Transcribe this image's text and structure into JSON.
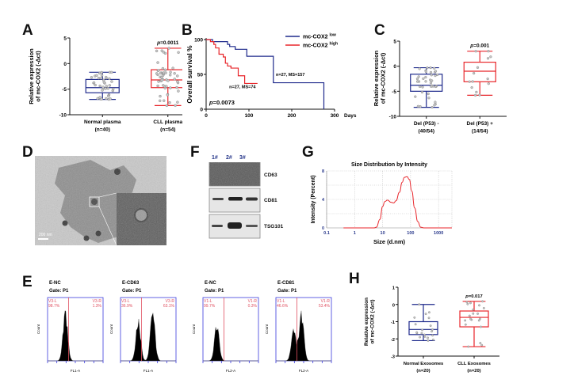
{
  "panels": {
    "A": {
      "letter": "A"
    },
    "B": {
      "letter": "B"
    },
    "C": {
      "letter": "C"
    },
    "D": {
      "letter": "D",
      "scale_bar": "200 nm"
    },
    "E": {
      "letter": "E"
    },
    "F": {
      "letter": "F"
    },
    "G": {
      "letter": "G"
    },
    "H": {
      "letter": "H"
    }
  },
  "colors": {
    "blue": "#1f2a8c",
    "red": "#e8262b",
    "point": "#888888",
    "flow_axis": "#3b3bdc",
    "flow_gate": "#e05060"
  },
  "chart_data": [
    {
      "id": "A",
      "type": "box",
      "ylabel": "Relative expression of mc-COX2 (-Δct)",
      "ylim": [
        -10,
        5
      ],
      "yticks": [
        5,
        0,
        -5,
        -10
      ],
      "categories": [
        "Normal plasma\n(n=40)",
        "CLL plasma\n(n=54)"
      ],
      "category_lines": [
        [
          "Normal plasma",
          "(n=40)"
        ],
        [
          "CLL plasma",
          "(n=54)"
        ]
      ],
      "annotation": "p=0.0011",
      "boxes": [
        {
          "name": "Normal plasma",
          "n": 40,
          "min": -7.0,
          "q1": -5.7,
          "median": -4.7,
          "q3": -3.1,
          "max": -1.7,
          "color": "blue"
        },
        {
          "name": "CLL plasma",
          "n": 54,
          "min": -8.2,
          "q1": -4.7,
          "median": -3.2,
          "q3": -1.2,
          "max": 3.0,
          "color": "red"
        }
      ]
    },
    {
      "id": "B",
      "type": "line",
      "subtype": "kaplan-meier",
      "ylabel": "Overall survival %",
      "xlabel": "Days",
      "xlim": [
        0,
        300
      ],
      "ylim": [
        0,
        100
      ],
      "xticks": [
        0,
        100,
        200,
        300
      ],
      "yticks": [
        0,
        50,
        100
      ],
      "annotation": "p=0.0073",
      "legend": "top-right",
      "series": [
        {
          "name": "mc-COX2",
          "sup": "low",
          "color": "blue",
          "label": "n=27, MS=157",
          "x": [
            0,
            15,
            15,
            50,
            50,
            55,
            55,
            68,
            68,
            95,
            95,
            157,
            157,
            275,
            275
          ],
          "y": [
            100,
            100,
            97,
            97,
            93,
            93,
            90,
            90,
            86,
            86,
            76,
            76,
            38,
            38,
            0
          ]
        },
        {
          "name": "mc-COX2",
          "sup": "high",
          "color": "red",
          "label": "n=27, MS=74",
          "x": [
            0,
            10,
            10,
            18,
            18,
            22,
            22,
            30,
            30,
            40,
            40,
            45,
            45,
            50,
            50,
            58,
            58,
            75,
            75,
            90,
            90,
            120
          ],
          "y": [
            100,
            100,
            97,
            97,
            93,
            93,
            88,
            88,
            79,
            79,
            75,
            75,
            66,
            66,
            62,
            62,
            59,
            59,
            48,
            48,
            37,
            37
          ]
        }
      ]
    },
    {
      "id": "C",
      "type": "box",
      "ylabel": "Relative expression of mc-COX2 (-Δct)",
      "ylim": [
        -10,
        5
      ],
      "yticks": [
        5,
        0,
        -5,
        -10
      ],
      "category_lines": [
        [
          "Del (P53) -",
          "(40/54)"
        ],
        [
          "Del (P53) +",
          "(14/54)"
        ]
      ],
      "annotation": "p=0.001",
      "boxes": [
        {
          "name": "Del (P53) -",
          "n": 40,
          "min": -8.2,
          "q1": -5.0,
          "median": -3.8,
          "q3": -1.6,
          "max": -0.3,
          "color": "blue"
        },
        {
          "name": "Del (P53) +",
          "n": 14,
          "min": -5.8,
          "q1": -3.1,
          "median": -1.0,
          "q3": 0.8,
          "max": 3.0,
          "color": "red"
        }
      ]
    },
    {
      "id": "G",
      "type": "line",
      "title": "Size Distribution by Intensity",
      "xlabel": "Size (d.nm)",
      "ylabel": "Intensity (Percent)",
      "xscale": "log",
      "xlim": [
        0.1,
        3000
      ],
      "ylim": [
        0,
        8
      ],
      "xticks": [
        "0.1",
        "1",
        "10",
        "100",
        "1000"
      ],
      "yticks": [
        "0",
        "4",
        "8"
      ],
      "grid": true,
      "series": [
        {
          "name": "Intensity",
          "color": "red",
          "x": [
            0.4,
            5,
            6,
            8,
            10,
            12,
            15,
            20,
            25,
            30,
            40,
            50,
            60,
            75,
            90,
            110,
            140,
            180,
            230,
            300,
            3000
          ],
          "y": [
            0,
            0,
            0.1,
            1.2,
            3.0,
            3.7,
            3.9,
            3.6,
            3.5,
            3.8,
            5.0,
            6.4,
            7.1,
            7.2,
            6.8,
            5.2,
            2.8,
            0.9,
            0.1,
            0,
            0
          ]
        }
      ]
    },
    {
      "id": "H",
      "type": "box",
      "ylabel": "Relative expression of mc-COX2 (-Δct)",
      "ylim": [
        -3,
        1
      ],
      "yticks": [
        1,
        0,
        -1,
        -2,
        -3
      ],
      "category_lines": [
        [
          "Normal Exosomes",
          "(n=20)"
        ],
        [
          "CLL Exosomes",
          "(n=20)"
        ]
      ],
      "annotation": "p=0.017",
      "boxes": [
        {
          "name": "Normal Exosomes",
          "n": 20,
          "min": -2.1,
          "q1": -1.75,
          "median": -1.45,
          "q3": -1.0,
          "max": 0.0,
          "color": "blue"
        },
        {
          "name": "CLL Exosomes",
          "n": 20,
          "min": -2.45,
          "q1": -1.3,
          "median": -0.75,
          "q3": -0.38,
          "max": 0.18,
          "color": "red"
        }
      ]
    }
  ],
  "western": {
    "lanes": [
      "1#",
      "2#",
      "3#"
    ],
    "rows": [
      {
        "label": "CD63"
      },
      {
        "label": "CD81"
      },
      {
        "label": "TSG101"
      }
    ]
  },
  "flow": [
    {
      "title": "E-NC",
      "gate": "Gate: P1",
      "left_label": "V3-L",
      "left_pct": "98.7%",
      "right_label": "V3-R",
      "right_pct": "1.3%",
      "xlabel": "FL1-A",
      "ylabel": "Count",
      "peaks": [
        [
          0.32,
          0.7
        ]
      ]
    },
    {
      "title": "E-CD63",
      "gate": "Gate: P1",
      "left_label": "V3-L",
      "left_pct": "36.9%",
      "right_label": "V3-R",
      "right_pct": "63.1%",
      "xlabel": "FL1-A",
      "ylabel": "Count",
      "peaks": [
        [
          0.32,
          0.6
        ],
        [
          0.58,
          0.72
        ]
      ]
    },
    {
      "title": "E-NC",
      "gate": "Gate: P1",
      "left_label": "V1-L",
      "left_pct": "99.7%",
      "right_label": "V1-R",
      "right_pct": "0.3%",
      "xlabel": "FL2-A",
      "ylabel": "Count",
      "peaks": [
        [
          0.25,
          0.55
        ]
      ]
    },
    {
      "title": "E-CD81",
      "gate": "Gate: P1",
      "left_label": "V1-L",
      "left_pct": "46.6%",
      "right_label": "V1-R",
      "right_pct": "53.4%",
      "xlabel": "FL2-A",
      "ylabel": "Count",
      "peaks": [
        [
          0.32,
          0.45
        ],
        [
          0.46,
          0.7
        ]
      ]
    }
  ]
}
